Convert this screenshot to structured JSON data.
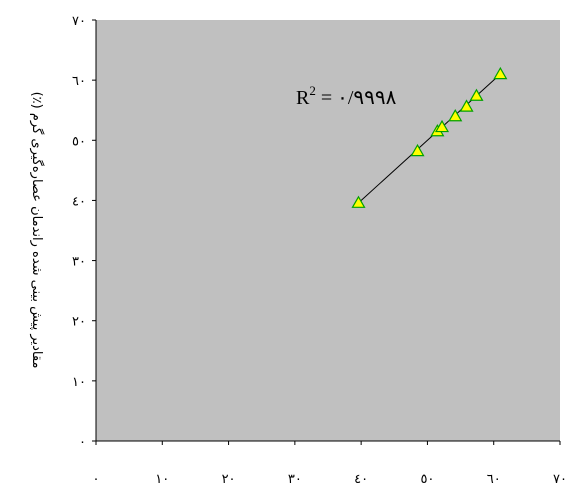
{
  "chart_data": {
    "type": "scatter",
    "xlabel": "",
    "ylabel": "مقادیر پیش بینی شده راندمان عصاره‌گیری گرم (٪)",
    "xlim": [
      0,
      70
    ],
    "ylim": [
      0,
      70
    ],
    "x_ticks": [
      0,
      10,
      20,
      30,
      40,
      50,
      60,
      70
    ],
    "y_ticks": [
      0,
      10,
      20,
      30,
      40,
      50,
      60,
      70
    ],
    "x_tick_labels": [
      "٠",
      "١٠",
      "٢٠",
      "٣٠",
      "٤٠",
      "٥٠",
      "٦٠",
      "٧٠"
    ],
    "y_tick_labels": [
      "٠",
      "١٠",
      "٢٠",
      "٣٠",
      "٤٠",
      "٥٠",
      "٦٠",
      "٧٠"
    ],
    "grid": false,
    "plot_background": "#c0c0c0",
    "marker": {
      "shape": "triangle",
      "fill": "#ffff00",
      "stroke": "#00a000"
    },
    "points": [
      {
        "x": 39.6,
        "y": 39.6
      },
      {
        "x": 48.5,
        "y": 48.2
      },
      {
        "x": 51.5,
        "y": 51.5
      },
      {
        "x": 52.2,
        "y": 52.2
      },
      {
        "x": 54.2,
        "y": 54.0
      },
      {
        "x": 55.9,
        "y": 55.6
      },
      {
        "x": 57.4,
        "y": 57.4
      },
      {
        "x": 61.0,
        "y": 61.0
      }
    ],
    "fit_line": {
      "x": [
        39.6,
        61.0
      ],
      "y": [
        39.6,
        61.0
      ]
    },
    "annotation": {
      "base": "R",
      "sup": "2",
      "rest": " = ٠/٩٩٩٨"
    }
  }
}
